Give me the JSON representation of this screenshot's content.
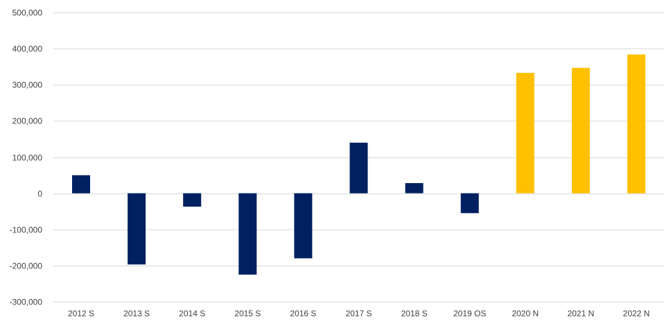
{
  "chart_data": {
    "type": "bar",
    "title": "",
    "xlabel": "",
    "ylabel": "",
    "ylim": [
      -300000,
      500000
    ],
    "yticks": [
      500000,
      400000,
      300000,
      200000,
      100000,
      0,
      -100000,
      -200000,
      -300000
    ],
    "ytick_labels": [
      "500,000",
      "400,000",
      "300,000",
      "200,000",
      "100,000",
      "0",
      "-100,000",
      "-200,000",
      "-300,000"
    ],
    "categories": [
      "2012 S",
      "2013 S",
      "2014 S",
      "2015 S",
      "2016 S",
      "2017 S",
      "2018 S",
      "2019 OS",
      "2020 N",
      "2021 N",
      "2022 N"
    ],
    "values": [
      50000,
      -197000,
      -37000,
      -225000,
      -180000,
      140000,
      28000,
      -55000,
      333000,
      347000,
      384000
    ],
    "colors": [
      "#002060",
      "#002060",
      "#002060",
      "#002060",
      "#002060",
      "#002060",
      "#002060",
      "#002060",
      "#FFC000",
      "#FFC000",
      "#FFC000"
    ],
    "grid": true,
    "legend": "none"
  }
}
